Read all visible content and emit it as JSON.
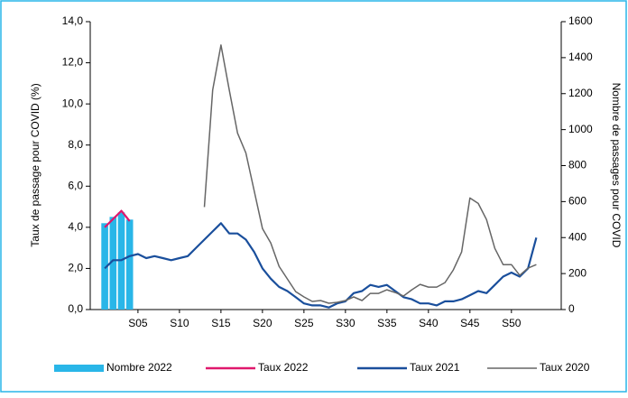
{
  "chart_data": {
    "type": "combo",
    "x": [
      1,
      2,
      3,
      4,
      5,
      6,
      7,
      8,
      9,
      10,
      11,
      12,
      13,
      14,
      15,
      16,
      17,
      18,
      19,
      20,
      21,
      22,
      23,
      24,
      25,
      26,
      27,
      28,
      29,
      30,
      31,
      32,
      33,
      34,
      35,
      36,
      37,
      38,
      39,
      40,
      41,
      42,
      43,
      44,
      45,
      46,
      47,
      48,
      49,
      50,
      51,
      52,
      53
    ],
    "xlim": [
      -0.75,
      56
    ],
    "xticks": [
      {
        "value": 5,
        "label": "S05"
      },
      {
        "value": 10,
        "label": "S10"
      },
      {
        "value": 15,
        "label": "S15"
      },
      {
        "value": 20,
        "label": "S20"
      },
      {
        "value": 25,
        "label": "S25"
      },
      {
        "value": 30,
        "label": "S30"
      },
      {
        "value": 35,
        "label": "S35"
      },
      {
        "value": 40,
        "label": "S40"
      },
      {
        "value": 45,
        "label": "S45"
      },
      {
        "value": 50,
        "label": "S50"
      }
    ],
    "y_label": "Taux de passage pour COVID (%)",
    "y2_label": "Nombre de passages pour COVID",
    "ylim": [
      0,
      14
    ],
    "yticks": [
      {
        "value": 0,
        "label": "0,0"
      },
      {
        "value": 2,
        "label": "2,0"
      },
      {
        "value": 4,
        "label": "4,0"
      },
      {
        "value": 6,
        "label": "6,0"
      },
      {
        "value": 8,
        "label": "8,0"
      },
      {
        "value": 10,
        "label": "10,0"
      },
      {
        "value": 12,
        "label": "12,0"
      },
      {
        "value": 14,
        "label": "14,0"
      }
    ],
    "y2lim": [
      0,
      1600
    ],
    "y2ticks": [
      0,
      200,
      400,
      600,
      800,
      1000,
      1200,
      1400,
      1600
    ],
    "series": [
      {
        "name": "Nombre 2022",
        "type": "bar",
        "axis": "y2",
        "color": "#29b6e8",
        "values": [
          480,
          515,
          540,
          500,
          null,
          null,
          null,
          null,
          null,
          null,
          null,
          null,
          null,
          null,
          null,
          null,
          null,
          null,
          null,
          null,
          null,
          null,
          null,
          null,
          null,
          null,
          null,
          null,
          null,
          null,
          null,
          null,
          null,
          null,
          null,
          null,
          null,
          null,
          null,
          null,
          null,
          null,
          null,
          null,
          null,
          null,
          null,
          null,
          null,
          null,
          null,
          null,
          null
        ]
      },
      {
        "name": "Taux 2022",
        "type": "line",
        "color": "#e0186c",
        "values": [
          4.0,
          4.4,
          4.8,
          4.3,
          null,
          null,
          null,
          null,
          null,
          null,
          null,
          null,
          null,
          null,
          null,
          null,
          null,
          null,
          null,
          null,
          null,
          null,
          null,
          null,
          null,
          null,
          null,
          null,
          null,
          null,
          null,
          null,
          null,
          null,
          null,
          null,
          null,
          null,
          null,
          null,
          null,
          null,
          null,
          null,
          null,
          null,
          null,
          null,
          null,
          null,
          null,
          null,
          null
        ]
      },
      {
        "name": "Taux 2021",
        "type": "line",
        "color": "#1a4f9c",
        "values": [
          2.0,
          2.4,
          2.4,
          2.6,
          2.7,
          2.5,
          2.6,
          2.5,
          2.4,
          2.5,
          2.6,
          3.0,
          3.4,
          3.8,
          4.2,
          3.7,
          3.7,
          3.4,
          2.8,
          2.0,
          1.5,
          1.1,
          0.9,
          0.6,
          0.3,
          0.2,
          0.2,
          0.1,
          0.3,
          0.4,
          0.8,
          0.9,
          1.2,
          1.1,
          1.2,
          0.9,
          0.6,
          0.5,
          0.3,
          0.3,
          0.2,
          0.4,
          0.4,
          0.5,
          0.7,
          0.9,
          0.8,
          1.2,
          1.6,
          1.8,
          1.6,
          2.0,
          3.5
        ]
      },
      {
        "name": "Taux 2020",
        "type": "line",
        "axis": "y2",
        "color": "#666666",
        "values": [
          null,
          null,
          null,
          null,
          null,
          null,
          null,
          null,
          null,
          null,
          null,
          null,
          570,
          1220,
          1470,
          1220,
          980,
          870,
          660,
          450,
          370,
          240,
          170,
          100,
          70,
          45,
          50,
          35,
          40,
          50,
          70,
          50,
          90,
          90,
          110,
          95,
          75,
          110,
          140,
          125,
          125,
          150,
          220,
          320,
          620,
          590,
          500,
          340,
          250,
          250,
          190,
          230,
          250
        ]
      }
    ]
  }
}
